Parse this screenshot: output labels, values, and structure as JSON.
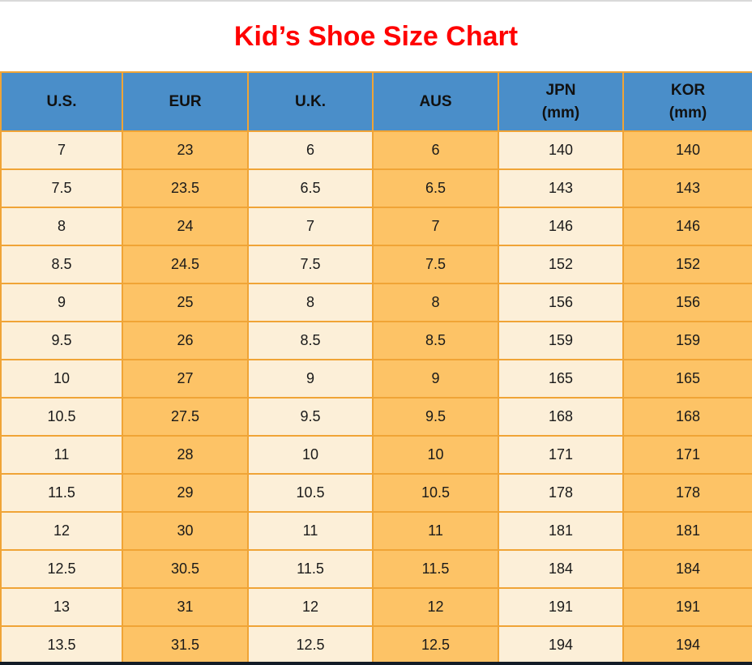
{
  "page": {
    "title": "Kid’s Shoe Size Chart"
  },
  "colors": {
    "title": "#FF0000",
    "header_bg": "#4A8EC9",
    "header_text": "#111111",
    "cell_cream": "#FCEFD8",
    "cell_orange": "#FDC366",
    "grid": "#F0A436",
    "cell_text": "#1A1A1A",
    "top_edge": "#D9D9D9",
    "bottom_edge": "#131C27"
  },
  "table": {
    "columns": [
      {
        "label": "U.S.",
        "sub": ""
      },
      {
        "label": "EUR",
        "sub": ""
      },
      {
        "label": "U.K.",
        "sub": ""
      },
      {
        "label": "AUS",
        "sub": ""
      },
      {
        "label": "JPN",
        "sub": "(mm)"
      },
      {
        "label": "KOR",
        "sub": "(mm)"
      }
    ]
  },
  "chart_data": {
    "type": "table",
    "title": "Kid’s Shoe Size Chart",
    "columns": [
      "U.S.",
      "EUR",
      "U.K.",
      "AUS",
      "JPN (mm)",
      "KOR (mm)"
    ],
    "rows": [
      [
        "7",
        "23",
        "6",
        "6",
        "140",
        "140"
      ],
      [
        "7.5",
        "23.5",
        "6.5",
        "6.5",
        "143",
        "143"
      ],
      [
        "8",
        "24",
        "7",
        "7",
        "146",
        "146"
      ],
      [
        "8.5",
        "24.5",
        "7.5",
        "7.5",
        "152",
        "152"
      ],
      [
        "9",
        "25",
        "8",
        "8",
        "156",
        "156"
      ],
      [
        "9.5",
        "26",
        "8.5",
        "8.5",
        "159",
        "159"
      ],
      [
        "10",
        "27",
        "9",
        "9",
        "165",
        "165"
      ],
      [
        "10.5",
        "27.5",
        "9.5",
        "9.5",
        "168",
        "168"
      ],
      [
        "11",
        "28",
        "10",
        "10",
        "171",
        "171"
      ],
      [
        "11.5",
        "29",
        "10.5",
        "10.5",
        "178",
        "178"
      ],
      [
        "12",
        "30",
        "11",
        "11",
        "181",
        "181"
      ],
      [
        "12.5",
        "30.5",
        "11.5",
        "11.5",
        "184",
        "184"
      ],
      [
        "13",
        "31",
        "12",
        "12",
        "191",
        "191"
      ],
      [
        "13.5",
        "31.5",
        "12.5",
        "12.5",
        "194",
        "194"
      ]
    ]
  }
}
